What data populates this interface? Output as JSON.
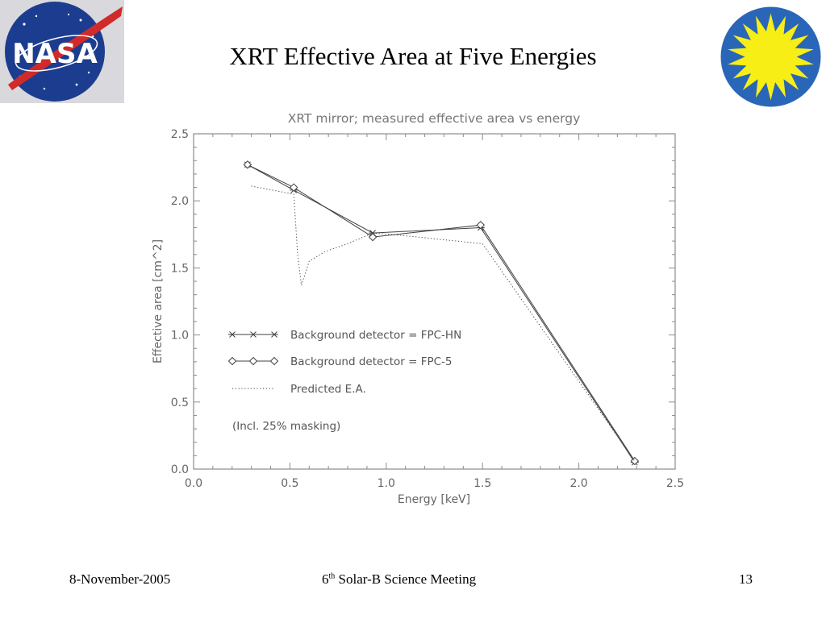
{
  "slide": {
    "title": "XRT Effective Area at Five Energies",
    "logos": {
      "left": "nasa-logo",
      "right": "sun-logo"
    }
  },
  "footer": {
    "date": "8-November-2005",
    "meeting_prefix": "6",
    "meeting_sup": "th",
    "meeting_suffix": " Solar-B Science Meeting",
    "page": "13"
  },
  "colors": {
    "nasa_blue": "#1c3d8f",
    "nasa_red": "#d12a2a",
    "sun_yellow": "#f7ee16",
    "sun_blue": "#2a66b8",
    "axis": "#8c8c8c",
    "series": "#404040"
  },
  "chart_data": {
    "type": "line",
    "title": "XRT mirror; measured effective area vs energy",
    "xlabel": "Energy [keV]",
    "ylabel": "Effective area [cm^2]",
    "xlim": [
      0.0,
      2.5
    ],
    "ylim": [
      0.0,
      2.5
    ],
    "xticks": [
      "0.0",
      "0.5",
      "1.0",
      "1.5",
      "2.0",
      "2.5"
    ],
    "yticks": [
      "0.0",
      "0.5",
      "1.0",
      "1.5",
      "2.0",
      "2.5"
    ],
    "grid": false,
    "legend_position": "center-left",
    "series": [
      {
        "name": "Background detector = FPC-HN",
        "style": "solid-asterisk",
        "x": [
          0.28,
          0.52,
          0.93,
          1.49,
          2.29
        ],
        "y": [
          2.27,
          2.08,
          1.76,
          1.8,
          0.05
        ]
      },
      {
        "name": "Background detector = FPC-5",
        "style": "solid-diamond",
        "x": [
          0.28,
          0.52,
          0.93,
          1.49,
          2.29
        ],
        "y": [
          2.27,
          2.1,
          1.73,
          1.82,
          0.06
        ]
      },
      {
        "name": "Predicted E.A.",
        "style": "dotted",
        "x": [
          0.3,
          0.52,
          0.54,
          0.56,
          0.6,
          0.68,
          0.8,
          0.93,
          1.1,
          1.3,
          1.5,
          2.29
        ],
        "y": [
          2.11,
          2.05,
          1.6,
          1.37,
          1.55,
          1.62,
          1.68,
          1.76,
          1.74,
          1.71,
          1.68,
          0.06
        ]
      }
    ],
    "annotation": "(Incl. 25% masking)"
  }
}
